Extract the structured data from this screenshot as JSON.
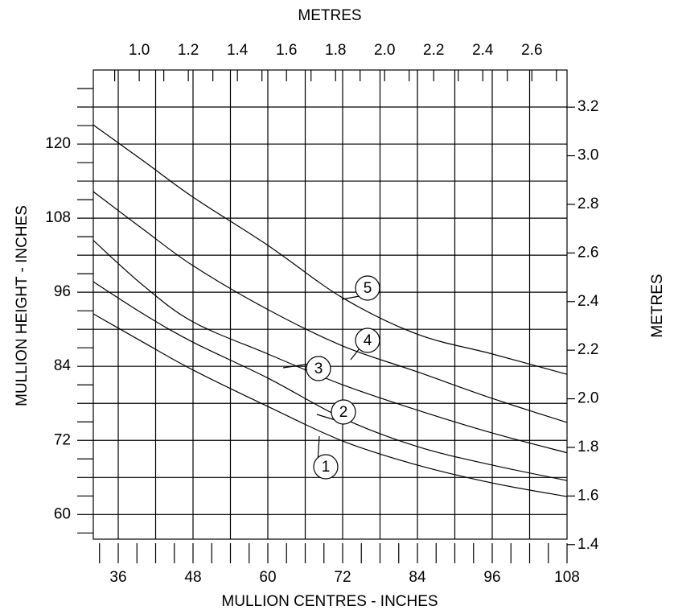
{
  "chart_data": {
    "type": "line",
    "x_label": "MULLION CENTRES - INCHES",
    "y_label": "MULLION HEIGHT - INCHES",
    "x2_label": "METRES",
    "y2_label": "METRES",
    "x": [
      32,
      40,
      48,
      60,
      72,
      84,
      96,
      108
    ],
    "series": [
      {
        "name": "1",
        "color": "#000000",
        "values": [
          92.5,
          87.9,
          83.4,
          77.5,
          71.9,
          68.0,
          65.1,
          62.9
        ]
      },
      {
        "name": "2",
        "color": "#000000",
        "values": [
          97.7,
          92.5,
          87.9,
          82.1,
          75.6,
          71.0,
          68.0,
          65.5
        ]
      },
      {
        "name": "3",
        "color": "#000000",
        "values": [
          104.4,
          97.1,
          91.2,
          86.0,
          81.0,
          76.9,
          73.2,
          70.0
        ]
      },
      {
        "name": "4",
        "color": "#000000",
        "values": [
          112.3,
          106.2,
          100.3,
          93.2,
          87.3,
          83.1,
          78.8,
          74.9
        ]
      },
      {
        "name": "5",
        "color": "#000000",
        "values": [
          123.1,
          117.3,
          111.4,
          103.6,
          95.1,
          89.2,
          86.0,
          82.7
        ]
      }
    ],
    "xlim": [
      32,
      108
    ],
    "xticks": [
      36,
      48,
      60,
      72,
      84,
      96,
      108
    ],
    "xminor": [
      33,
      39,
      42,
      45,
      51,
      54,
      57,
      63,
      66,
      69,
      75,
      78,
      81,
      87,
      90,
      93,
      99,
      102,
      105
    ],
    "ylim": [
      56,
      132
    ],
    "yticks": [
      60,
      72,
      84,
      96,
      108,
      120
    ],
    "yminor": [
      57,
      63,
      66,
      69,
      75,
      78,
      81,
      87,
      90,
      93,
      99,
      102,
      105,
      111,
      114,
      117,
      123,
      126,
      129
    ],
    "x2lim": [
      0.8128,
      2.7432
    ],
    "x2ticks": [
      {
        "value": 1,
        "label": "1.0"
      },
      1.2,
      1.4,
      1.6,
      1.8,
      {
        "value": 2,
        "label": "2.0"
      },
      2.2,
      2.4,
      2.6
    ],
    "x2minor": [
      0.9,
      1.1,
      1.3,
      1.5,
      1.7,
      1.9,
      2.1,
      2.3,
      2.5,
      2.7
    ],
    "y2lim": [
      1.4224,
      3.3528
    ],
    "y2ticks": [
      1.4,
      1.6,
      1.8,
      {
        "value": 2,
        "label": "2.0"
      },
      2.2,
      2.4,
      2.6,
      2.8,
      {
        "value": 3,
        "label": "3.0"
      },
      3.2
    ],
    "grid": true
  }
}
